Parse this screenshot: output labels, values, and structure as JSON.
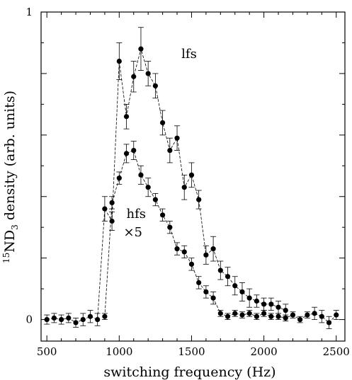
{
  "chart_data": {
    "type": "scatter",
    "xlabel": "switching frequency (Hz)",
    "ylabel": "ND density (arb. units)",
    "ylabel_sup": "15",
    "ylabel_sub": "3",
    "xlim": [
      460,
      2560
    ],
    "ylim": [
      -0.07,
      1.0
    ],
    "x_ticks": [
      500,
      1000,
      1500,
      2000,
      2500
    ],
    "x_tick_labels": [
      "500",
      "1000",
      "1500",
      "2000",
      "2500"
    ],
    "y_ticks": [
      0,
      1
    ],
    "y_tick_labels": [
      "0",
      "1"
    ],
    "annotations": [
      {
        "text": "lfs",
        "x": 1430,
        "y": 0.85
      },
      {
        "text": "hfs",
        "x": 1050,
        "y": 0.33
      },
      {
        "text": "×5",
        "x": 1030,
        "y": 0.27
      }
    ],
    "series": [
      {
        "label": "lfs",
        "x": [
          500,
          550,
          600,
          650,
          700,
          750,
          800,
          850,
          900,
          950,
          1000,
          1050,
          1100,
          1150,
          1200,
          1250,
          1300,
          1350,
          1400,
          1450,
          1500,
          1550,
          1600,
          1650,
          1700,
          1750,
          1800,
          1850,
          1900,
          1950,
          2000,
          2050,
          2100,
          2150
        ],
        "y": [
          0.0,
          0.005,
          0.0,
          0.005,
          -0.01,
          0.0,
          0.01,
          0.0,
          0.36,
          0.32,
          0.84,
          0.66,
          0.79,
          0.88,
          0.8,
          0.76,
          0.64,
          0.55,
          0.59,
          0.43,
          0.47,
          0.39,
          0.21,
          0.23,
          0.16,
          0.14,
          0.11,
          0.09,
          0.07,
          0.06,
          0.05,
          0.05,
          0.04,
          0.03
        ],
        "err": [
          0.015,
          0.015,
          0.015,
          0.015,
          0.015,
          0.02,
          0.02,
          0.02,
          0.04,
          0.03,
          0.06,
          0.04,
          0.05,
          0.07,
          0.04,
          0.04,
          0.04,
          0.04,
          0.04,
          0.04,
          0.04,
          0.03,
          0.03,
          0.04,
          0.03,
          0.03,
          0.03,
          0.03,
          0.03,
          0.02,
          0.02,
          0.02,
          0.02,
          0.02
        ]
      },
      {
        "label": "hfs ×5",
        "x": [
          900,
          950,
          1000,
          1050,
          1100,
          1150,
          1200,
          1250,
          1300,
          1350,
          1400,
          1450,
          1500,
          1550,
          1600,
          1650,
          1700,
          1750,
          1800,
          1850,
          1900,
          1950,
          2000,
          2050,
          2100,
          2150,
          2200,
          2250,
          2300,
          2350,
          2400,
          2450,
          2500
        ],
        "y": [
          0.01,
          0.38,
          0.46,
          0.54,
          0.55,
          0.47,
          0.43,
          0.39,
          0.34,
          0.3,
          0.23,
          0.22,
          0.18,
          0.12,
          0.09,
          0.07,
          0.02,
          0.01,
          0.02,
          0.015,
          0.02,
          0.01,
          0.02,
          0.01,
          0.01,
          0.005,
          0.015,
          0.0,
          0.015,
          0.02,
          0.01,
          -0.01,
          0.015
        ],
        "err": [
          0.01,
          0.02,
          0.02,
          0.03,
          0.03,
          0.03,
          0.03,
          0.02,
          0.02,
          0.02,
          0.02,
          0.02,
          0.02,
          0.02,
          0.02,
          0.02,
          0.01,
          0.01,
          0.01,
          0.01,
          0.01,
          0.01,
          0.01,
          0.01,
          0.01,
          0.01,
          0.01,
          0.01,
          0.01,
          0.02,
          0.02,
          0.02,
          0.015
        ]
      }
    ]
  }
}
